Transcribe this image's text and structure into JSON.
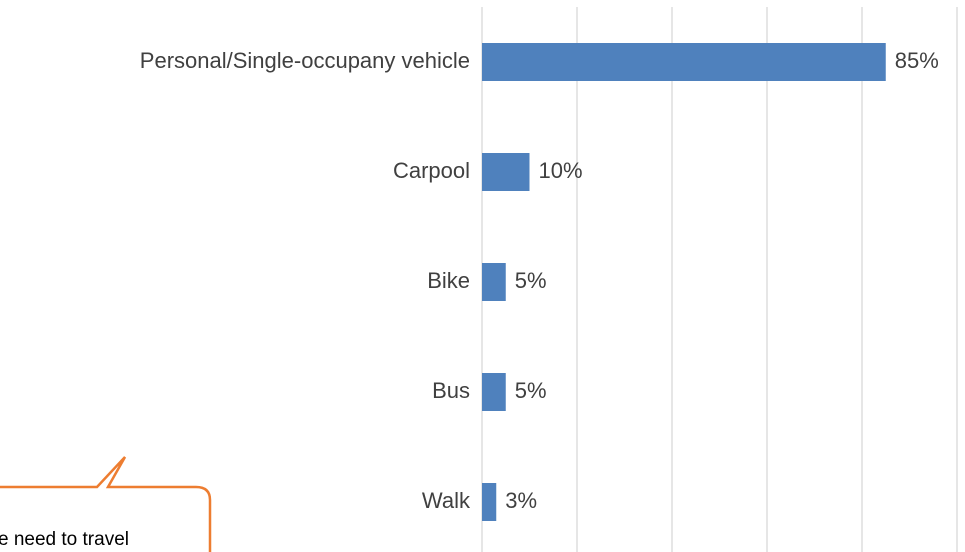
{
  "chart_data": {
    "type": "bar",
    "orientation": "horizontal",
    "categories": [
      "Personal/Single-occupany vehicle",
      "Carpool",
      "Bike",
      "Bus",
      "Walk"
    ],
    "values": [
      85,
      10,
      5,
      5,
      3
    ],
    "value_labels": [
      "85%",
      "10%",
      "5%",
      "5%",
      "3%"
    ],
    "color": "#4f81bd",
    "xlim": [
      0,
      100
    ],
    "xticks": [
      0,
      20,
      40,
      60,
      80,
      100
    ],
    "grid": true,
    "annotations": [
      "e need to travel"
    ]
  }
}
